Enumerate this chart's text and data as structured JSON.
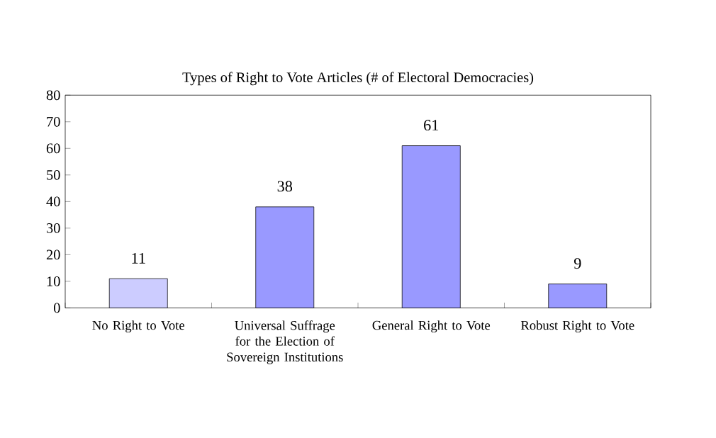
{
  "chart_data": {
    "type": "bar",
    "title": "Types of Right to Vote Articles (# of Electoral Democracies)",
    "categories": [
      "No Right to Vote",
      "Universal Suffrage for the Election of Sovereign Institutions",
      "General Right to Vote",
      "Robust Right to Vote"
    ],
    "values": [
      11,
      38,
      61,
      9
    ],
    "colors": [
      "#ccccff",
      "#9999ff",
      "#9999ff",
      "#9999ff"
    ],
    "ylim": [
      0,
      80
    ],
    "yticks": [
      0,
      10,
      20,
      30,
      40,
      50,
      60,
      70,
      80
    ],
    "data_labels": true
  }
}
